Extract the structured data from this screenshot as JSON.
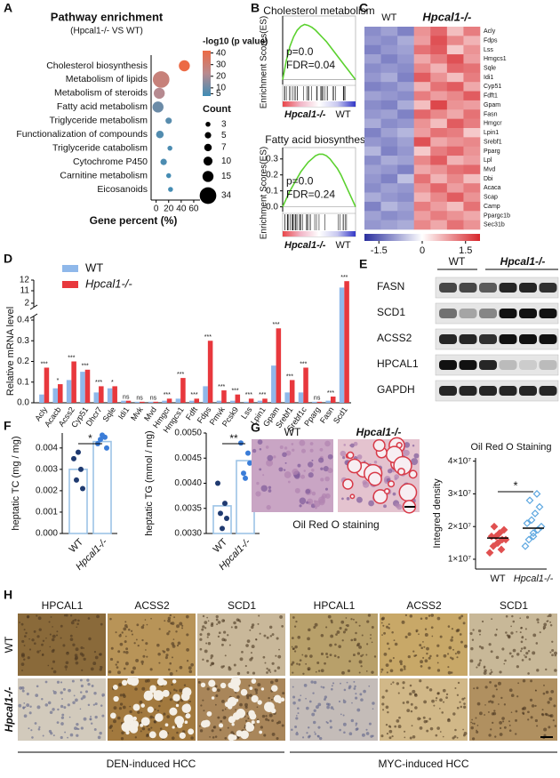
{
  "chart_data": [
    {
      "type": "bubble",
      "panel_label": "A",
      "title": "Pathway enrichment",
      "subtitle": "(Hpcal1-/- VS WT)",
      "categories": [
        "Cholesterol biosynthesis",
        "Metabolism of lipids",
        "Metabolism of steroids",
        "Fatty acid metabolism",
        "Triglyceride metabolism",
        "Functionalization of compounds",
        "Triglyceride catabolism",
        "Cytochrome P450",
        "Carnitine metabolism",
        "Eicosanoids"
      ],
      "x": [
        45,
        8,
        5,
        3,
        20,
        6,
        22,
        12,
        20,
        23
      ],
      "color_values": [
        42,
        28,
        22,
        10,
        7,
        6,
        5,
        5,
        4,
        4
      ],
      "sizes": [
        15,
        34,
        15,
        15,
        5,
        7,
        3,
        5,
        3,
        3
      ],
      "xlabel": "Gene percent (%)",
      "xlim": [
        -8,
        70
      ],
      "xticks": [
        0,
        20,
        40,
        60
      ],
      "color_label": "-log10 (p value)",
      "clim": [
        3,
        42
      ],
      "color_ticks": [
        40,
        30,
        20,
        10,
        5
      ],
      "colorscale": [
        "#3f8cb5",
        "#b98a8f",
        "#ec6a45"
      ],
      "size_label": "Count",
      "size_ticks": [
        3,
        5,
        7,
        10,
        15,
        34
      ]
    },
    {
      "type": "line",
      "panel_label": "B",
      "title": "Cholesterol metabolism",
      "ylabel": "Enrichment Scores(ES)",
      "stats": [
        "p=0.0",
        "FDR=0.04"
      ],
      "groups": [
        "Hpcal1-/-",
        "WT"
      ],
      "color": "#5bd12f",
      "values": [
        0,
        0.2,
        0.35,
        0.45,
        0.52,
        0.56,
        0.58,
        0.57,
        0.55,
        0.52,
        0.48,
        0.44,
        0.4,
        0.35,
        0.3,
        0.25,
        0.2,
        0.15,
        0.1,
        0.05,
        0
      ],
      "ylim": [
        -0.05,
        0.65
      ]
    },
    {
      "type": "line",
      "title": "Fatty acid biosynthesis",
      "ylabel": "Enrichment Scores(ES)",
      "stats": [
        "p=0.0",
        "FDR=0.24"
      ],
      "groups": [
        "Hpcal1-/-",
        "WT"
      ],
      "color": "#5bd12f",
      "values": [
        0,
        0.05,
        0.1,
        0.14,
        0.18,
        0.22,
        0.25,
        0.28,
        0.3,
        0.32,
        0.33,
        0.33,
        0.32,
        0.3,
        0.27,
        0.24,
        0.2,
        0.15,
        0.1,
        0.05,
        0
      ],
      "ylim": [
        -0.03,
        0.36
      ],
      "yticks": [
        {
          "value": 0,
          "label": "0.0"
        },
        0.1,
        0.2,
        0.3
      ]
    },
    {
      "type": "heatmap",
      "panel_label": "C",
      "genes": [
        "Acly",
        "Fdps",
        "Lss",
        "Hmgcs1",
        "Sqle",
        "Idi1",
        "Cyp51",
        "Fdft1",
        "Gpam",
        "Fasn",
        "Hmgcr",
        "Lpin1",
        "Srebf1",
        "Pparg",
        "Lpl",
        "Mvd",
        "Dbi",
        "Acaca",
        "Scap",
        "Camp",
        "Ppargc1b",
        "Sec31b"
      ],
      "groups": [
        {
          "name": "WT",
          "values": [
            [
              -1.1,
              -0.9,
              -1.2
            ],
            [
              -1.0,
              -1.1,
              -0.8
            ],
            [
              -1.2,
              -1.0,
              -0.9
            ],
            [
              -0.9,
              -1.2,
              -1.0
            ],
            [
              -1.1,
              -1.0,
              -1.1
            ],
            [
              -1.0,
              -0.8,
              -1.2
            ],
            [
              -1.2,
              -1.1,
              -0.9
            ],
            [
              -0.9,
              -1.0,
              -1.1
            ],
            [
              -1.1,
              -1.2,
              -0.8
            ],
            [
              -1.0,
              -0.9,
              -1.2
            ],
            [
              -0.8,
              -1.1,
              -1.0
            ],
            [
              -1.2,
              -0.9,
              -0.7
            ],
            [
              -1.0,
              -1.1,
              -0.9
            ],
            [
              -0.7,
              -1.2,
              -1.0
            ],
            [
              -1.1,
              -0.8,
              -0.9
            ],
            [
              -0.9,
              -1.0,
              -1.2
            ],
            [
              -1.0,
              -1.2,
              -0.6
            ],
            [
              -1.1,
              -0.9,
              -1.0
            ],
            [
              -0.8,
              -1.0,
              -1.1
            ],
            [
              -1.2,
              -0.7,
              -0.9
            ],
            [
              -0.9,
              -1.1,
              -1.0
            ],
            [
              -1.0,
              -0.9,
              -0.8
            ]
          ]
        },
        {
          "name": "Hpcal1-/-",
          "values": [
            [
              1.0,
              1.4,
              0.6,
              1.2
            ],
            [
              0.9,
              1.6,
              1.1,
              0.7
            ],
            [
              1.3,
              1.5,
              0.5,
              1.0
            ],
            [
              0.8,
              1.2,
              1.6,
              0.9
            ],
            [
              1.1,
              0.7,
              1.4,
              1.3
            ],
            [
              1.5,
              1.0,
              0.6,
              1.2
            ],
            [
              0.7,
              1.3,
              1.5,
              0.8
            ],
            [
              1.2,
              0.9,
              1.1,
              1.5
            ],
            [
              0.6,
              1.7,
              1.0,
              0.9
            ],
            [
              1.4,
              1.1,
              0.8,
              1.3
            ],
            [
              1.0,
              0.6,
              1.5,
              1.2
            ],
            [
              0.9,
              1.3,
              1.2,
              0.5
            ],
            [
              1.6,
              0.8,
              1.0,
              1.1
            ],
            [
              0.5,
              1.2,
              1.4,
              1.0
            ],
            [
              1.1,
              1.5,
              0.7,
              0.9
            ],
            [
              0.8,
              1.0,
              1.3,
              1.4
            ],
            [
              1.3,
              0.7,
              1.1,
              0.6
            ],
            [
              1.0,
              1.4,
              0.9,
              1.2
            ],
            [
              0.7,
              1.1,
              1.5,
              1.0
            ],
            [
              1.2,
              0.9,
              0.6,
              1.3
            ],
            [
              0.9,
              1.2,
              1.0,
              0.8
            ],
            [
              1.1,
              0.8,
              1.3,
              1.0
            ]
          ]
        }
      ],
      "clim": [
        -2,
        2
      ],
      "ticks": [
        -1.5,
        0,
        1.5
      ],
      "colorscale": [
        "#2a2f9e",
        "#ffffff",
        "#d7262b"
      ]
    },
    {
      "type": "bar",
      "panel_label": "D",
      "ylabel": "Relative mRNA level",
      "categories": [
        "Acly",
        "Acacb",
        "Acss2",
        "Cyp51",
        "Dhcr7",
        "Sqle",
        "Idi1",
        "Mvk",
        "Mvd",
        "Hmgcr",
        "Hmgcs1",
        "Fdft",
        "Fdps",
        "Pmvk",
        "Pcsk9",
        "Lss",
        "Lpin1",
        "Gpam",
        "Srebf1",
        "Srebf1c",
        "Pparg",
        "Fasn",
        "Scd1"
      ],
      "series": [
        {
          "name": "WT",
          "color": "#8fb8ea",
          "values": [
            0.04,
            0.07,
            0.11,
            0.15,
            0.05,
            0.07,
            0.01,
            0.005,
            0.005,
            0.01,
            0.02,
            0.01,
            0.08,
            0.01,
            0.01,
            0.005,
            0.01,
            0.18,
            0.05,
            0.05,
            0.005,
            0.01,
            11.3
          ]
        },
        {
          "name": "Hpcal1-/-",
          "color": "#e8383d",
          "values": [
            0.17,
            0.09,
            0.2,
            0.16,
            0.08,
            0.08,
            0.01,
            0.005,
            0.005,
            0.02,
            0.12,
            0.02,
            0.3,
            0.06,
            0.04,
            0.02,
            0.02,
            0.36,
            0.11,
            0.17,
            0.005,
            0.03,
            11.9
          ]
        }
      ],
      "significance": [
        "***",
        "*",
        "***",
        "***",
        "***",
        "*",
        "ns",
        "ns",
        "ns",
        "***",
        "***",
        "***",
        "***",
        "***",
        "***",
        "***",
        "***",
        "***",
        "***",
        "***",
        "ns",
        "***",
        "***"
      ],
      "segments": [
        {
          "ylim": [
            0,
            0.4
          ],
          "yticks": [
            {
              "value": 0,
              "label": "0.0"
            },
            0.1,
            0.2,
            0.3,
            0.4
          ]
        },
        {
          "ylim": [
            2,
            11
          ],
          "yticks": [
            2,
            11
          ]
        },
        {
          "ylim": [
            11,
            12
          ],
          "yticks": [
            12
          ]
        }
      ]
    },
    {
      "type": "dotbar",
      "panel_label": "F",
      "ylabel": "heptatic TC (mg / mg)",
      "categories": [
        "WT",
        "Hpcal1-/-"
      ],
      "values": [
        0.003,
        0.0043
      ],
      "points": [
        [
          0.0035,
          0.003,
          0.0025,
          0.0021,
          0.0038
        ],
        [
          0.0042,
          0.0045,
          0.0044,
          0.004,
          0.0046
        ]
      ],
      "point_colors": [
        "#1f3a70",
        "#3b7dd8"
      ],
      "color": "#9cc3e6",
      "significance": "*",
      "ylim": [
        0,
        0.0047
      ],
      "yticks": [
        {
          "value": 0,
          "label": "0.000"
        },
        0.001,
        0.002,
        0.003,
        0.004
      ]
    },
    {
      "type": "dotbar",
      "ylabel": "heptatic TG (mmol / mg)",
      "categories": [
        "WT",
        "Hpcal1-/-"
      ],
      "values": [
        0.00355,
        0.00445
      ],
      "points": [
        [
          0.004,
          0.0036,
          0.0034,
          0.0033,
          0.0031
        ],
        [
          0.0048,
          0.0046,
          0.0042,
          0.0044,
          0.0041
        ]
      ],
      "point_colors": [
        "#1f3a70",
        "#3b7dd8"
      ],
      "color": "#9cc3e6",
      "significance": "**",
      "ylim": [
        0.003,
        0.005
      ],
      "yticks": [
        {
          "value": 0.003,
          "label": "0.0030"
        },
        0.0035,
        {
          "value": 0.004,
          "label": "0.0040"
        },
        0.0045,
        {
          "value": 0.005,
          "label": "0.0050"
        }
      ]
    },
    {
      "type": "scatter",
      "title": "Oil Red O Staining",
      "ylabel": "Integred density",
      "categories": [
        "WT",
        "Hpcal1-/-"
      ],
      "values": [
        16500000,
        19500000
      ],
      "points": [
        [
          12000000,
          14000000,
          15000000,
          16000000,
          16000000,
          17000000,
          17000000,
          18000000,
          19000000,
          20000000,
          13000000,
          15000000
        ],
        [
          14000000,
          16000000,
          18000000,
          19000000,
          20000000,
          21000000,
          22000000,
          24000000,
          26000000,
          28000000,
          30000000,
          17000000
        ]
      ],
      "point_colors": [
        "#e05050",
        "#5da7e0"
      ],
      "significance": "*",
      "ylim": [
        7000000,
        41000000
      ],
      "yticks": [
        {
          "value": 10000000,
          "label": "1×10⁷"
        },
        {
          "value": 20000000,
          "label": "2×10⁷"
        },
        {
          "value": 30000000,
          "label": "3×10⁷"
        },
        {
          "value": 40000000,
          "label": "4×10⁷"
        }
      ]
    }
  ],
  "blot": {
    "panel_label": "E",
    "groups": [
      "WT",
      "Hpcal1-/-"
    ],
    "proteins": [
      "FASN",
      "SCD1",
      "ACSS2",
      "HPCAL1",
      "GAPDH"
    ]
  },
  "staining": {
    "panel_label": "G",
    "images": [
      "WT",
      "Hpcal1-/-"
    ],
    "caption": "Oil Red   O staining"
  },
  "ihc": {
    "panel_label": "H",
    "columns": [
      "HPCAL1",
      "ACSS2",
      "SCD1",
      "HPCAL1",
      "ACSS2",
      "SCD1"
    ],
    "rows": [
      "WT",
      "Hpcal1-/-"
    ],
    "groups": [
      "DEN-induced HCC",
      "MYC-induced HCC"
    ]
  }
}
